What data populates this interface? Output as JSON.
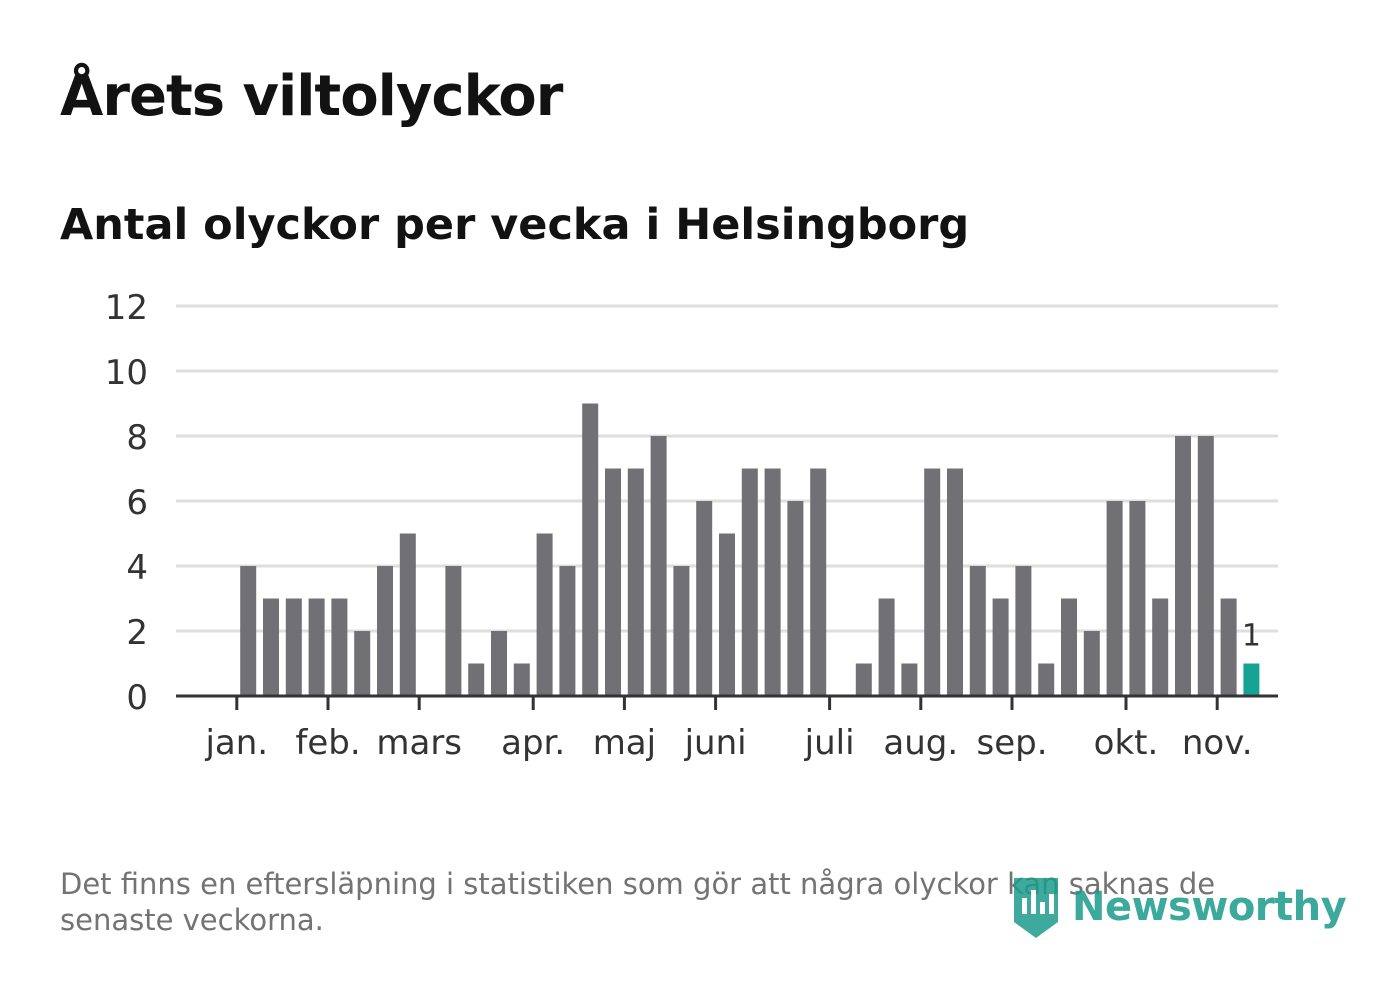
{
  "title": "Årets viltolyckor",
  "subtitle": "Antal olyckor per vecka i Helsingborg",
  "footnote": "Det finns en eftersläpning i statistiken som gör att några olyckor kan saknas de senaste veckorna.",
  "brand": {
    "name": "Newsworthy",
    "color": "#1b9b8c",
    "icon": "newsworthy-logo-icon"
  },
  "colors": {
    "bar": "#717075",
    "highlight": "#17a393",
    "grid": "#dedede",
    "axis": "#333333",
    "tick_text": "#333333"
  },
  "chart_data": {
    "type": "bar",
    "title": "Antal olyckor per vecka i Helsingborg",
    "xlabel": "",
    "ylabel": "",
    "ylim": [
      0,
      12
    ],
    "yticks": [
      0,
      2,
      4,
      6,
      8,
      10,
      12
    ],
    "grid": true,
    "weeks": [
      1,
      2,
      3,
      4,
      5,
      6,
      7,
      8,
      9,
      10,
      11,
      12,
      13,
      14,
      15,
      16,
      17,
      18,
      19,
      20,
      21,
      22,
      23,
      24,
      25,
      26,
      27,
      28,
      29,
      30,
      31,
      32,
      33,
      34,
      35,
      36,
      37,
      38,
      39,
      40,
      41,
      42,
      43,
      44,
      45,
      46,
      47
    ],
    "values": [
      0,
      4,
      3,
      3,
      3,
      3,
      2,
      4,
      5,
      0,
      4,
      1,
      2,
      1,
      5,
      4,
      9,
      7,
      7,
      8,
      4,
      6,
      5,
      7,
      7,
      6,
      7,
      0,
      1,
      3,
      1,
      7,
      7,
      4,
      3,
      4,
      1,
      3,
      2,
      6,
      6,
      3,
      8,
      8,
      3,
      1,
      0
    ],
    "highlight_index": 45,
    "highlight_label": "1",
    "month_ticks": [
      {
        "label": "jan.",
        "week": 1.5
      },
      {
        "label": "feb.",
        "week": 5.5
      },
      {
        "label": "mars",
        "week": 9.5
      },
      {
        "label": "apr.",
        "week": 14.5
      },
      {
        "label": "maj",
        "week": 18.5
      },
      {
        "label": "juni",
        "week": 22.5
      },
      {
        "label": "juli",
        "week": 27.5
      },
      {
        "label": "aug.",
        "week": 31.5
      },
      {
        "label": "sep.",
        "week": 35.5
      },
      {
        "label": "okt.",
        "week": 40.5
      },
      {
        "label": "nov.",
        "week": 44.5
      }
    ]
  }
}
